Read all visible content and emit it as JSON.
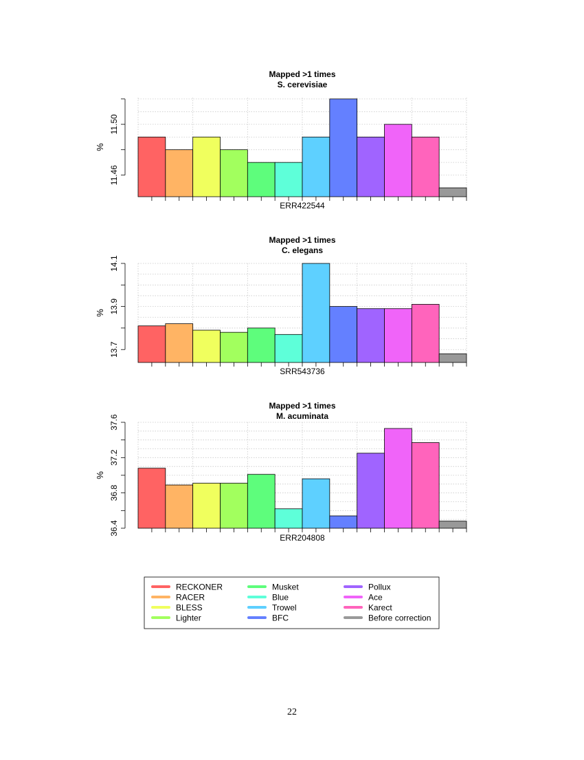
{
  "page_number": "22",
  "colors": {
    "RECKONER": "#ff6363",
    "RACER": "#ffb464",
    "BLESS": "#f0ff5e",
    "Lighter": "#a2ff5e",
    "Musket": "#5efd7c",
    "Blue": "#5effd9",
    "Trowel": "#5ed0ff",
    "BFC": "#6480ff",
    "Pollux": "#a064ff",
    "Ace": "#f064f9",
    "Karect": "#ff64bc",
    "Before correction": "#999999"
  },
  "legend": {
    "entries": [
      "RECKONER",
      "RACER",
      "BLESS",
      "Lighter",
      "Musket",
      "Blue",
      "Trowel",
      "BFC",
      "Pollux",
      "Ace",
      "Karect",
      "Before correction"
    ]
  },
  "chart_data": [
    {
      "type": "bar",
      "title": "Mapped >1 times",
      "subtitle": "S. cerevisiae",
      "xlabel": "ERR422544",
      "ylabel": "%",
      "categories": [
        "RECKONER",
        "RACER",
        "BLESS",
        "Lighter",
        "Musket",
        "Blue",
        "Trowel",
        "BFC",
        "Pollux",
        "Ace",
        "Karect",
        "Before correction"
      ],
      "values": [
        11.49,
        11.48,
        11.49,
        11.48,
        11.47,
        11.47,
        11.49,
        11.52,
        11.49,
        11.5,
        11.49,
        11.45
      ],
      "ylim": [
        11.443,
        11.521
      ],
      "yticks": [
        11.46,
        11.48,
        11.5,
        11.52
      ],
      "ytick_labels": [
        "11.46",
        "",
        "11.50",
        ""
      ],
      "grid": true
    },
    {
      "type": "bar",
      "title": "Mapped >1 times",
      "subtitle": "C. elegans",
      "xlabel": "SRR543736",
      "ylabel": "%",
      "categories": [
        "RECKONER",
        "RACER",
        "BLESS",
        "Lighter",
        "Musket",
        "Blue",
        "Trowel",
        "BFC",
        "Pollux",
        "Ace",
        "Karect",
        "Before correction"
      ],
      "values": [
        13.81,
        13.82,
        13.79,
        13.78,
        13.8,
        13.77,
        14.1,
        13.9,
        13.89,
        13.89,
        13.91,
        13.68
      ],
      "ylim": [
        13.64,
        14.1
      ],
      "yticks": [
        13.7,
        13.8,
        13.9,
        14.0,
        14.1
      ],
      "ytick_labels": [
        "13.7",
        "",
        "13.9",
        "",
        "14.1"
      ],
      "grid": true
    },
    {
      "type": "bar",
      "title": "Mapped >1 times",
      "subtitle": "M. acuminata",
      "xlabel": "ERR204808",
      "ylabel": "%",
      "categories": [
        "RECKONER",
        "RACER",
        "BLESS",
        "Lighter",
        "Musket",
        "Blue",
        "Trowel",
        "BFC",
        "Pollux",
        "Ace",
        "Karect",
        "Before correction"
      ],
      "values": [
        37.08,
        36.89,
        36.91,
        36.91,
        37.01,
        36.62,
        36.96,
        36.54,
        37.25,
        37.53,
        37.37,
        36.48
      ],
      "ylim": [
        36.4,
        37.6
      ],
      "yticks": [
        36.4,
        36.6,
        36.8,
        37.0,
        37.2,
        37.4,
        37.6
      ],
      "ytick_labels": [
        "36.4",
        "",
        "36.8",
        "",
        "37.2",
        "",
        "37.6"
      ],
      "grid": true
    }
  ]
}
